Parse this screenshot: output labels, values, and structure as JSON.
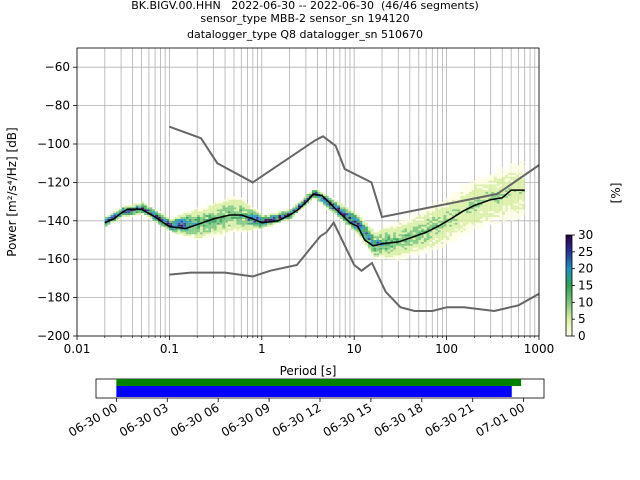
{
  "header": {
    "title_lines": [
      "BK.BIGV.00.HHN   2022-06-30 -- 2022-06-30  (46/46 segments)",
      "sensor_type MBB-2 sensor_sn 194120",
      "datalogger_type Q8 datalogger_sn 510670"
    ]
  },
  "chart_data": {
    "type": "heatmap",
    "xlabel": "Period [s]",
    "ylabel": "Power [m²/s⁴/Hz] [dB]",
    "xscale": "log",
    "xlim": [
      0.01,
      1000
    ],
    "ylim": [
      -200,
      -50
    ],
    "x_ticks": [
      0.01,
      0.1,
      1,
      10,
      100,
      1000
    ],
    "x_tick_labels": [
      "0.01",
      "0.1",
      "1",
      "10",
      "100",
      "1000"
    ],
    "y_ticks": [
      -200,
      -180,
      -160,
      -140,
      -120,
      -100,
      -80,
      -60
    ],
    "y_tick_labels": [
      "−200",
      "−180",
      "−160",
      "−140",
      "−120",
      "−100",
      "−80",
      "−60"
    ],
    "grid": true,
    "colorbar": {
      "label": "[%]",
      "min": 0,
      "max": 30,
      "ticks": [
        0,
        5,
        10,
        15,
        20,
        25,
        30
      ],
      "tick_labels": [
        "0",
        "5",
        "10",
        "15",
        "20",
        "25",
        "30"
      ],
      "colors": [
        "#ffffe5",
        "#d9f0a3",
        "#78c679",
        "#31a354",
        "#1d91c0",
        "#253494",
        "#2d004b"
      ]
    },
    "series": [
      {
        "name": "NHNM",
        "color": "#666666",
        "points": [
          [
            0.1,
            -91
          ],
          [
            0.22,
            -97
          ],
          [
            0.33,
            -110
          ],
          [
            0.8,
            -120
          ],
          [
            3.8,
            -98
          ],
          [
            4.6,
            -96
          ],
          [
            6.3,
            -101
          ],
          [
            7.9,
            -113
          ],
          [
            15.4,
            -120
          ],
          [
            20,
            -138
          ],
          [
            354,
            -126
          ],
          [
            1000,
            -111
          ]
        ]
      },
      {
        "name": "NLNM",
        "color": "#666666",
        "points": [
          [
            0.1,
            -168
          ],
          [
            0.17,
            -167
          ],
          [
            0.4,
            -167
          ],
          [
            0.8,
            -169
          ],
          [
            1.24,
            -166
          ],
          [
            2.4,
            -163
          ],
          [
            4.3,
            -148
          ],
          [
            5,
            -146
          ],
          [
            6,
            -141
          ],
          [
            10,
            -163
          ],
          [
            12,
            -166
          ],
          [
            15.6,
            -162
          ],
          [
            21.9,
            -177
          ],
          [
            31.6,
            -185
          ],
          [
            45,
            -187
          ],
          [
            70,
            -187
          ],
          [
            101,
            -185
          ],
          [
            154,
            -185
          ],
          [
            328,
            -187
          ],
          [
            600,
            -184
          ],
          [
            1000,
            -178
          ]
        ]
      },
      {
        "name": "mode",
        "color": "#000000",
        "points": [
          [
            0.02,
            -141
          ],
          [
            0.025,
            -139
          ],
          [
            0.03,
            -136
          ],
          [
            0.035,
            -134
          ],
          [
            0.05,
            -134
          ],
          [
            0.07,
            -138
          ],
          [
            0.1,
            -143
          ],
          [
            0.15,
            -144
          ],
          [
            0.2,
            -142
          ],
          [
            0.3,
            -139
          ],
          [
            0.45,
            -137
          ],
          [
            0.6,
            -137
          ],
          [
            0.8,
            -139
          ],
          [
            1.0,
            -141
          ],
          [
            1.5,
            -140
          ],
          [
            2.0,
            -137
          ],
          [
            2.5,
            -134
          ],
          [
            3.2,
            -129
          ],
          [
            3.6,
            -126
          ],
          [
            4.5,
            -127
          ],
          [
            5.5,
            -131
          ],
          [
            7,
            -136
          ],
          [
            9,
            -141
          ],
          [
            11,
            -143
          ],
          [
            13,
            -150
          ],
          [
            16,
            -153
          ],
          [
            20,
            -152
          ],
          [
            30,
            -151
          ],
          [
            40,
            -149
          ],
          [
            60,
            -146
          ],
          [
            80,
            -143
          ],
          [
            120,
            -138
          ],
          [
            150,
            -135
          ],
          [
            200,
            -132
          ],
          [
            300,
            -129
          ],
          [
            400,
            -128
          ],
          [
            500,
            -124
          ],
          [
            700,
            -124
          ]
        ]
      }
    ],
    "density": [
      {
        "center": [
          [
            0.02,
            -141
          ],
          [
            0.03,
            -136
          ],
          [
            0.05,
            -134
          ],
          [
            0.1,
            -143
          ],
          [
            0.2,
            -142
          ],
          [
            0.5,
            -137
          ],
          [
            1,
            -141
          ],
          [
            2,
            -137
          ],
          [
            3.6,
            -126
          ],
          [
            7,
            -136
          ],
          [
            11,
            -143
          ],
          [
            16,
            -153
          ],
          [
            30,
            -151
          ],
          [
            80,
            -143
          ],
          [
            200,
            -132
          ],
          [
            400,
            -127
          ],
          [
            700,
            -124
          ]
        ],
        "spread": [
          [
            0.02,
            3
          ],
          [
            0.1,
            4
          ],
          [
            0.2,
            10
          ],
          [
            0.5,
            12
          ],
          [
            1,
            4
          ],
          [
            2,
            3
          ],
          [
            3.6,
            3
          ],
          [
            10,
            6
          ],
          [
            16,
            8
          ],
          [
            30,
            12
          ],
          [
            100,
            16
          ],
          [
            300,
            18
          ],
          [
            700,
            20
          ]
        ]
      }
    ]
  },
  "timeline": {
    "tick_labels": [
      "06-30 00",
      "06-30 03",
      "06-30 06",
      "06-30 09",
      "06-30 12",
      "06-30 15",
      "06-30 18",
      "06-30 21",
      "07-01 00"
    ],
    "bars": [
      {
        "color": "#008000",
        "start_hour": 0.0,
        "end_hour": 23.85
      },
      {
        "color": "#0000ff",
        "start_hour": 0.0,
        "end_hour": 23.3
      }
    ],
    "range_hours": [
      -1.2,
      25.2
    ]
  }
}
